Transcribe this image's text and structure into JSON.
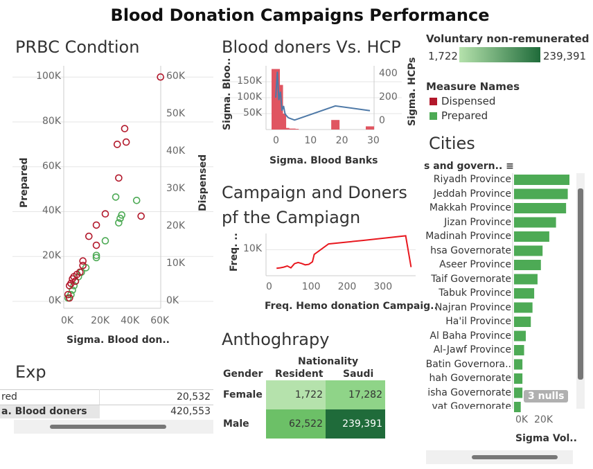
{
  "title": "Blood Donation Campaigns Performance",
  "prbc": {
    "title": "PRBC Condtion",
    "ylabel_left": "Prepared",
    "ylabel_right": "Dispensed",
    "xlabel": "Sigma. Blood don..",
    "y_ticks_left": [
      "100K",
      "80K",
      "60K",
      "40K",
      "20K",
      "0K"
    ],
    "y_ticks_right": [
      "60K",
      "50K",
      "40K",
      "30K",
      "20K",
      "10K",
      "0K"
    ],
    "x_ticks": [
      "0K",
      "20K",
      "40K",
      "60K"
    ]
  },
  "hcp": {
    "title": "Blood doners Vs. HCP",
    "ylabel_left": "Sigma. Bloo..",
    "ylabel_right": "Sigma. HCPs",
    "xlabel": "Sigma. Blood Banks",
    "y_ticks_left": [
      "150K",
      "100K",
      "50K"
    ],
    "y_ticks_right": [
      "400",
      "200",
      "0"
    ],
    "x_ticks": [
      "0",
      "10",
      "20",
      "30"
    ]
  },
  "campaign": {
    "title_line1": "Campaign and Doners",
    "title_line2": "pf the Campiagn",
    "ylabel": "Freq. ..",
    "xlabel": "Freq. Hemo donation Campaig..",
    "y_ticks": [
      "10K"
    ],
    "x_ticks": [
      "0",
      "100",
      "200",
      "300"
    ]
  },
  "anthro": {
    "title": "Anthoghrapy",
    "col_group": "Nationality",
    "row_header": "Gender",
    "cols": [
      "Resident",
      "Saudi"
    ],
    "rows": [
      {
        "label": "Female",
        "values": [
          "1,722",
          "17,282"
        ],
        "colors": [
          "#b5e2ac",
          "#8fd488"
        ]
      },
      {
        "label": "Male",
        "values": [
          "62,522",
          "239,391"
        ],
        "colors": [
          "#6cc067",
          "#1f6b3a"
        ]
      }
    ]
  },
  "exp": {
    "title": "Exp",
    "rows": [
      {
        "label": "red",
        "value": "20,532"
      },
      {
        "label": "a. Blood doners",
        "value": "420,553"
      }
    ]
  },
  "legend": {
    "color_title": "Voluntary non-remunerated bl..",
    "min": "1,722",
    "max": "239,391",
    "measure_title": "Measure Names",
    "items": [
      {
        "label": "Dispensed",
        "color": "#b2182b"
      },
      {
        "label": "Prepared",
        "color": "#4daa55"
      }
    ]
  },
  "cities": {
    "title": "Cities",
    "header": "s and govern..",
    "items": [
      {
        "label": "Riyadh Province",
        "value": 33
      },
      {
        "label": "Jeddah Province",
        "value": 32
      },
      {
        "label": "Makkah Province",
        "value": 31
      },
      {
        "label": "Jizan Province",
        "value": 25
      },
      {
        "label": "Madinah Province",
        "value": 21
      },
      {
        "label": "hsa Governorate",
        "value": 17
      },
      {
        "label": "Aseer Province",
        "value": 16
      },
      {
        "label": "Taif Governorate",
        "value": 14
      },
      {
        "label": "Tabuk Province",
        "value": 12
      },
      {
        "label": "Najran Province",
        "value": 11
      },
      {
        "label": "Ha'il Province",
        "value": 10
      },
      {
        "label": "Al Baha Province",
        "value": 7
      },
      {
        "label": "Al-Jawf Province",
        "value": 6
      },
      {
        "label": "Batin Governora..",
        "value": 5
      },
      {
        "label": "hah Governorate",
        "value": 5
      },
      {
        "label": "isha Governorate",
        "value": 5
      },
      {
        "label": "vat Governorate",
        "value": 4
      }
    ],
    "null_badge": "3 nulls",
    "x_ticks": [
      "0K",
      "20K"
    ],
    "xlabel": "Sigma Vol.."
  },
  "chart_data": [
    {
      "type": "scatter",
      "title": "PRBC Condtion",
      "xlabel": "Sigma. Blood don..",
      "ylabel": "Prepared",
      "xlim": [
        0,
        65000
      ],
      "ylim": [
        0,
        105000
      ],
      "series": [
        {
          "name": "Dispensed",
          "points": [
            [
              63000,
              100000
            ],
            [
              39000,
              77000
            ],
            [
              40000,
              71000
            ],
            [
              34000,
              70000
            ],
            [
              35000,
              55000
            ],
            [
              26000,
              39000
            ],
            [
              50000,
              38000
            ],
            [
              20000,
              34000
            ],
            [
              15000,
              29000
            ],
            [
              20000,
              25000
            ],
            [
              11000,
              18000
            ],
            [
              11000,
              16000
            ],
            [
              9000,
              13000
            ],
            [
              7000,
              12000
            ],
            [
              5000,
              11000
            ],
            [
              4000,
              10000
            ],
            [
              6000,
              9000
            ],
            [
              3000,
              8000
            ],
            [
              2000,
              7000
            ],
            [
              1000,
              3000
            ],
            [
              2000,
              1500
            ]
          ]
        },
        {
          "name": "Prepared",
          "points": [
            [
              33000,
              46500
            ],
            [
              47000,
              45000
            ],
            [
              37000,
              38500
            ],
            [
              36000,
              37000
            ],
            [
              35000,
              35000
            ],
            [
              26000,
              27000
            ],
            [
              20000,
              20500
            ],
            [
              20000,
              19500
            ],
            [
              13000,
              15000
            ],
            [
              10000,
              13000
            ],
            [
              8000,
              11000
            ],
            [
              6000,
              9000
            ],
            [
              5000,
              7000
            ],
            [
              4000,
              5000
            ],
            [
              3000,
              3000
            ],
            [
              1000,
              1500
            ]
          ]
        }
      ]
    },
    {
      "type": "bar",
      "title": "Blood doners Vs. HCP",
      "xlabel": "Sigma. Blood Banks",
      "ylabel": "Sigma. Bloo..",
      "bars": [
        [
          0,
          190000
        ],
        [
          1,
          140000
        ],
        [
          2,
          50000
        ],
        [
          3,
          5000
        ],
        [
          4,
          2000
        ],
        [
          5,
          3000
        ],
        [
          6,
          2000
        ],
        [
          19,
          30000
        ],
        [
          30,
          10000
        ]
      ],
      "line": {
        "name": "Sigma. HCPs",
        "points": [
          [
            0,
            200
          ],
          [
            0.5,
            420
          ],
          [
            1,
            180
          ],
          [
            1.5,
            250
          ],
          [
            2,
            90
          ],
          [
            2.5,
            130
          ],
          [
            3,
            60
          ],
          [
            4,
            30
          ],
          [
            6,
            10
          ],
          [
            19,
            130
          ],
          [
            30,
            90
          ]
        ]
      }
    },
    {
      "type": "line",
      "title": "Campaign and Doners pf the Campiagn",
      "xlabel": "Freq. Hemo donation Campaig..",
      "ylabel": "Freq. ..",
      "points": [
        [
          10,
          2000
        ],
        [
          20,
          2200
        ],
        [
          30,
          2500
        ],
        [
          40,
          3000
        ],
        [
          50,
          2200
        ],
        [
          60,
          4000
        ],
        [
          70,
          4500
        ],
        [
          80,
          4100
        ],
        [
          90,
          3500
        ],
        [
          100,
          3700
        ],
        [
          110,
          4800
        ],
        [
          115,
          8000
        ],
        [
          155,
          12500
        ],
        [
          250,
          14000
        ],
        [
          370,
          16000
        ],
        [
          385,
          2500
        ]
      ]
    }
  ]
}
